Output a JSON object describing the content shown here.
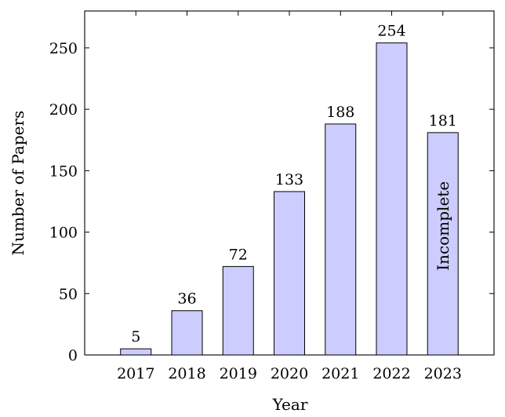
{
  "chart_data": {
    "type": "bar",
    "categories": [
      "2017",
      "2018",
      "2019",
      "2020",
      "2021",
      "2022",
      "2023"
    ],
    "values": [
      5,
      36,
      72,
      133,
      188,
      254,
      181
    ],
    "data_labels": [
      "5",
      "36",
      "72",
      "133",
      "188",
      "254",
      "181"
    ],
    "xlabel": "Year",
    "ylabel": "Number of Papers",
    "ylim": [
      0,
      280
    ],
    "y_ticks": [
      0,
      50,
      100,
      150,
      200,
      250
    ],
    "y_tick_labels": [
      "0",
      "50",
      "100",
      "150",
      "200",
      "250"
    ],
    "annotations": [
      {
        "category": "2023",
        "text": "Incomplete",
        "orientation": "vertical"
      }
    ],
    "grid": false,
    "colors": {
      "bar_fill": "#ccccff",
      "bar_stroke": "#000000",
      "axis": "#000000"
    }
  }
}
